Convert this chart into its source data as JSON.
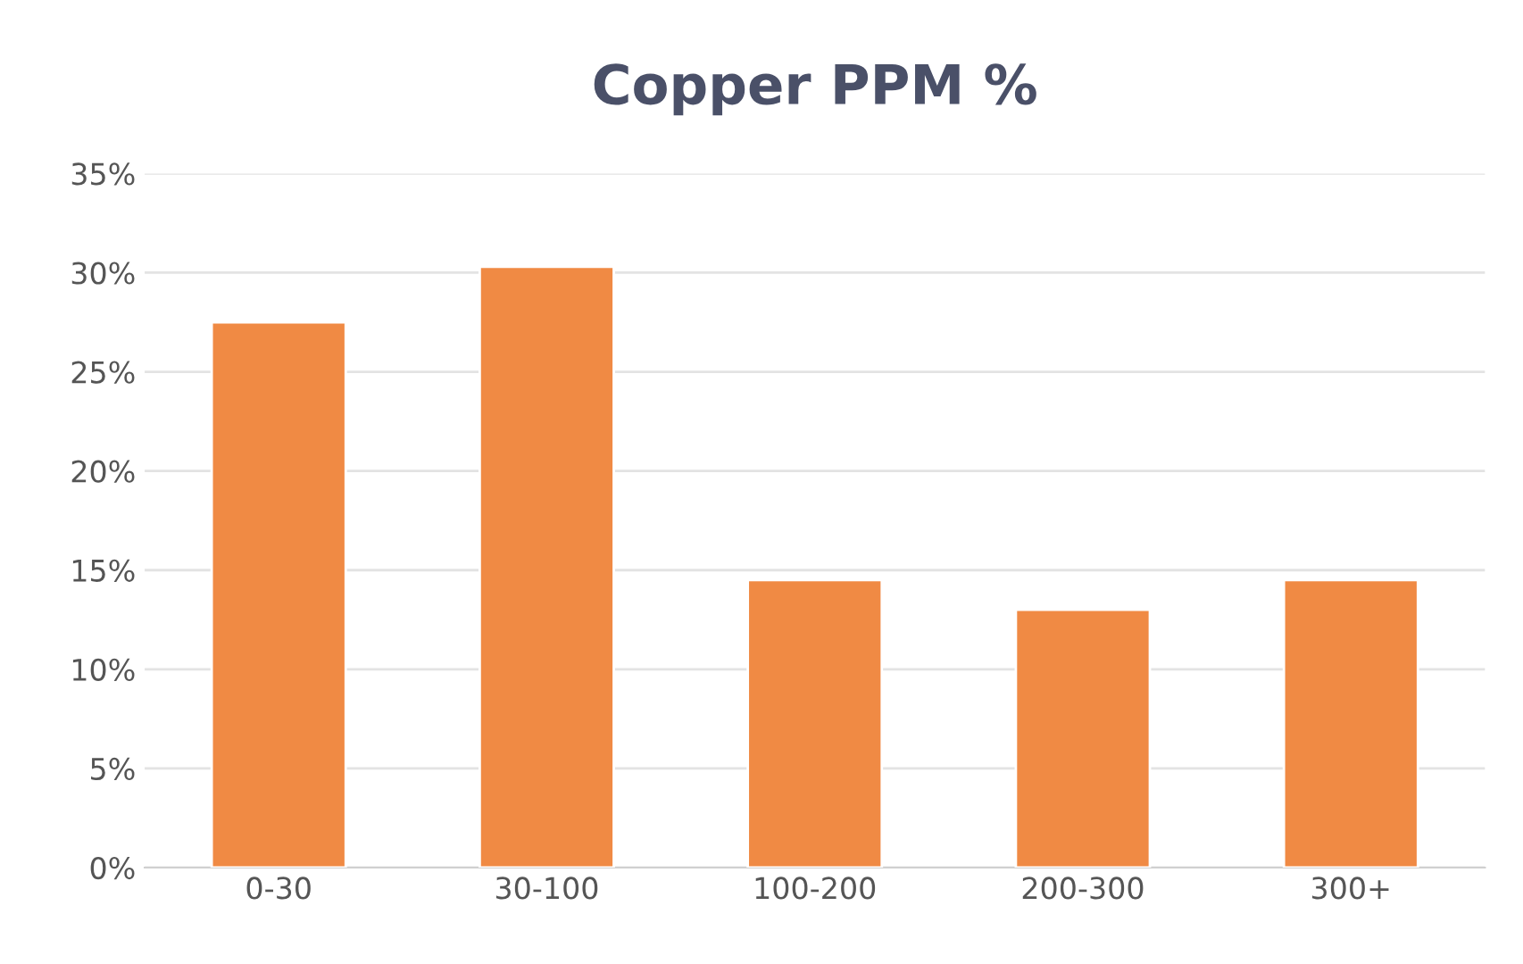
{
  "chart_data": {
    "type": "bar",
    "title": "Copper PPM %",
    "categories": [
      "0-30",
      "30-100",
      "100-200",
      "200-300",
      "300+"
    ],
    "values": [
      27.5,
      30.3,
      14.5,
      13,
      14.5
    ],
    "color": "#f08a44",
    "ylim": [
      0,
      35
    ],
    "yticks": [
      {
        "value": 0,
        "label": "0%"
      },
      {
        "value": 5,
        "label": "5%"
      },
      {
        "value": 10,
        "label": "10%"
      },
      {
        "value": 15,
        "label": "15%"
      },
      {
        "value": 20,
        "label": "20%"
      },
      {
        "value": 25,
        "label": "25%"
      },
      {
        "value": 30,
        "label": "30%"
      },
      {
        "value": 35,
        "label": "35%"
      }
    ],
    "grid": "y",
    "legend": false
  }
}
